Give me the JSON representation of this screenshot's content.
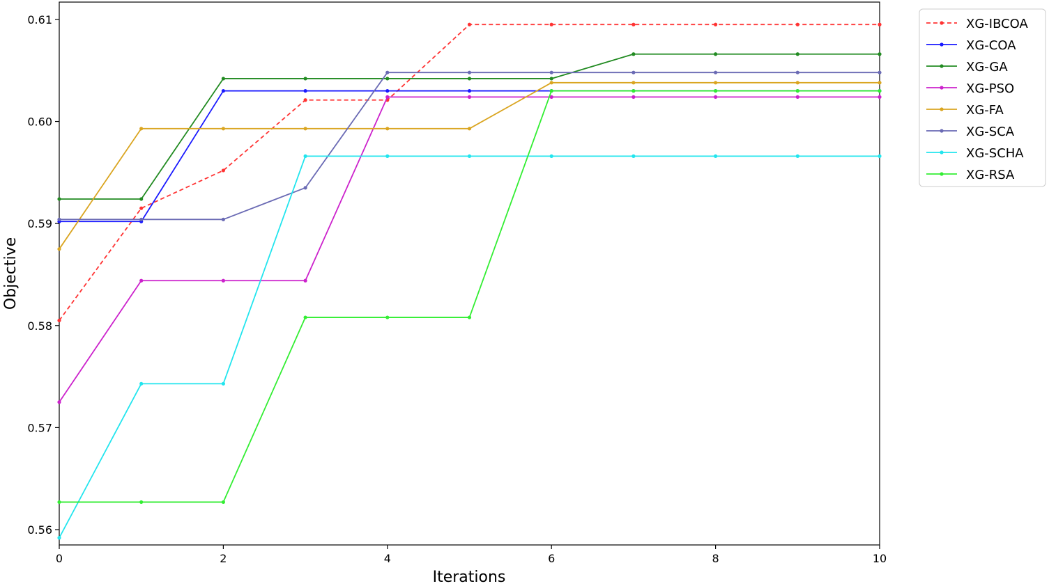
{
  "chart_data": {
    "type": "line",
    "title": "",
    "xlabel": "Iterations",
    "ylabel": "Objective",
    "xlim": [
      0,
      10
    ],
    "ylim": [
      0.5585,
      0.6117
    ],
    "xticks": [
      0,
      2,
      4,
      6,
      8,
      10
    ],
    "xtick_labels": [
      "0",
      "2",
      "4",
      "6",
      "8",
      "10"
    ],
    "yticks": [
      0.56,
      0.57,
      0.58,
      0.59,
      0.6,
      0.61
    ],
    "ytick_labels": [
      "0.56",
      "0.57",
      "0.58",
      "0.59",
      "0.60",
      "0.61"
    ],
    "grid": false,
    "legend_position": "outside-top-right",
    "x": [
      0,
      1,
      2,
      3,
      4,
      5,
      6,
      7,
      8,
      9,
      10
    ],
    "series": [
      {
        "name": "XG-IBCOA",
        "color": "#ff3333",
        "dashed": true,
        "values": [
          0.5805,
          0.5915,
          0.5952,
          0.6021,
          0.6021,
          0.6095,
          0.6095,
          0.6095,
          0.6095,
          0.6095,
          0.6095
        ]
      },
      {
        "name": "XG-COA",
        "color": "#1a1aff",
        "dashed": false,
        "values": [
          0.5902,
          0.5902,
          0.603,
          0.603,
          0.603,
          0.603,
          0.603,
          0.603,
          0.603,
          0.603,
          0.603
        ]
      },
      {
        "name": "XG-GA",
        "color": "#228B22",
        "dashed": false,
        "values": [
          0.5924,
          0.5924,
          0.6042,
          0.6042,
          0.6042,
          0.6042,
          0.6042,
          0.6066,
          0.6066,
          0.6066,
          0.6066
        ]
      },
      {
        "name": "XG-PSO",
        "color": "#cc22cc",
        "dashed": false,
        "values": [
          0.5725,
          0.5844,
          0.5844,
          0.5844,
          0.6024,
          0.6024,
          0.6024,
          0.6024,
          0.6024,
          0.6024,
          0.6024
        ]
      },
      {
        "name": "XG-FA",
        "color": "#daa520",
        "dashed": false,
        "values": [
          0.5875,
          0.5993,
          0.5993,
          0.5993,
          0.5993,
          0.5993,
          0.6038,
          0.6038,
          0.6038,
          0.6038,
          0.6038
        ]
      },
      {
        "name": "XG-SCA",
        "color": "#6a6ab4",
        "dashed": false,
        "values": [
          0.5904,
          0.5904,
          0.5904,
          0.5935,
          0.6048,
          0.6048,
          0.6048,
          0.6048,
          0.6048,
          0.6048,
          0.6048
        ]
      },
      {
        "name": "XG-SCHA",
        "color": "#22e5ee",
        "dashed": false,
        "values": [
          0.5592,
          0.5743,
          0.5743,
          0.5966,
          0.5966,
          0.5966,
          0.5966,
          0.5966,
          0.5966,
          0.5966,
          0.5966
        ]
      },
      {
        "name": "XG-RSA",
        "color": "#33ee33",
        "dashed": false,
        "values": [
          0.5627,
          0.5627,
          0.5627,
          0.5808,
          0.5808,
          0.5808,
          0.603,
          0.603,
          0.603,
          0.603,
          0.603
        ]
      }
    ]
  }
}
